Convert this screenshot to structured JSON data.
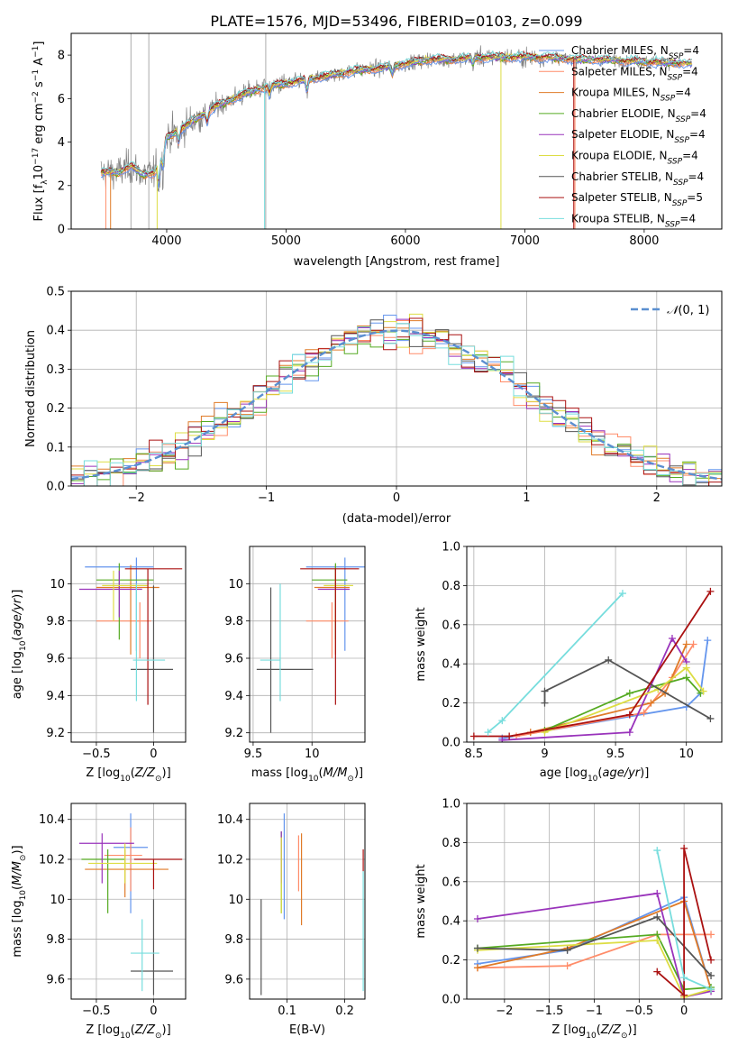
{
  "title": "PLATE=1576, MJD=53496, FIBERID=0103, z=0.099",
  "colors": [
    "#6495ed",
    "#ff8c69",
    "#e07b28",
    "#55aa22",
    "#9933bb",
    "#dddd44",
    "#555555",
    "#aa1111",
    "#77dddd"
  ],
  "models": [
    {
      "name": "Chabrier MILES",
      "nssp": "4"
    },
    {
      "name": "Salpeter MILES",
      "nssp": "4"
    },
    {
      "name": "Kroupa MILES",
      "nssp": "4"
    },
    {
      "name": "Chabrier ELODIE",
      "nssp": "4"
    },
    {
      "name": "Salpeter ELODIE",
      "nssp": "4"
    },
    {
      "name": "Kroupa ELODIE",
      "nssp": "4"
    },
    {
      "name": "Chabrier STELIB",
      "nssp": "4"
    },
    {
      "name": "Salpeter STELIB",
      "nssp": "5"
    },
    {
      "name": "Kroupa STELIB",
      "nssp": "4"
    }
  ],
  "chart_data": [
    {
      "id": "spectrum",
      "type": "line",
      "xlabel": "wavelength [Angstrom, rest frame]",
      "ylabel": "Flux [f",
      "xlim": [
        3200,
        8650
      ],
      "ylim": [
        0,
        9
      ],
      "xticks": [
        4000,
        5000,
        6000,
        7000,
        8000
      ],
      "yticks": [
        0,
        2,
        4,
        6,
        8
      ],
      "legend": "upper right",
      "anchors": [
        [
          3450,
          2.6
        ],
        [
          3600,
          2.6
        ],
        [
          3700,
          2.9
        ],
        [
          3800,
          2.5
        ],
        [
          3900,
          2.6
        ],
        [
          4000,
          4.2
        ],
        [
          4200,
          4.9
        ],
        [
          4400,
          5.6
        ],
        [
          4600,
          6.1
        ],
        [
          4800,
          6.5
        ],
        [
          5000,
          6.7
        ],
        [
          5200,
          6.9
        ],
        [
          5400,
          7.1
        ],
        [
          5600,
          7.3
        ],
        [
          5800,
          7.4
        ],
        [
          6000,
          7.6
        ],
        [
          6200,
          7.8
        ],
        [
          6400,
          7.8
        ],
        [
          6600,
          7.9
        ],
        [
          6800,
          7.9
        ],
        [
          7000,
          7.9
        ],
        [
          7200,
          7.9
        ],
        [
          7400,
          7.8
        ],
        [
          7600,
          7.8
        ],
        [
          8000,
          7.7
        ],
        [
          8400,
          7.6
        ]
      ]
    },
    {
      "id": "residuals",
      "type": "line",
      "xlabel": "(data-model)/error",
      "ylabel": "Normed distribution",
      "xlim": [
        -2.5,
        2.5
      ],
      "ylim": [
        0,
        0.5
      ],
      "xticks": [
        -2,
        -1,
        0,
        1,
        2
      ],
      "yticks": [
        0.0,
        0.1,
        0.2,
        0.3,
        0.4,
        0.5
      ],
      "legend": "upper right",
      "reference": "N(0,1)",
      "grid": true
    },
    {
      "id": "age-vs-Z",
      "type": "scatter",
      "xlabel": "Z [log",
      "ylabel": "age  [log",
      "xlim": [
        -0.72,
        0.28
      ],
      "ylim": [
        9.15,
        10.2
      ],
      "xticks": [
        -0.5,
        0.0
      ],
      "yticks": [
        9.2,
        9.4,
        9.6,
        9.8,
        10.0
      ],
      "points": [
        {
          "model": 0,
          "x": -0.15,
          "y": 10.09,
          "xerr": [
            0.45,
            0.15
          ],
          "yerr": [
            0.45,
            0.05
          ]
        },
        {
          "model": 1,
          "x": -0.12,
          "y": 9.8,
          "xerr": [
            0.38,
            0.1
          ],
          "yerr": [
            0.2,
            0.1
          ]
        },
        {
          "model": 2,
          "x": -0.2,
          "y": 9.98,
          "xerr": [
            0.3,
            0.25
          ],
          "yerr": [
            0.36,
            0.12
          ]
        },
        {
          "model": 3,
          "x": -0.3,
          "y": 10.02,
          "xerr": [
            0.2,
            0.3
          ],
          "yerr": [
            0.32,
            0.09
          ]
        },
        {
          "model": 4,
          "x": -0.3,
          "y": 9.97,
          "xerr": [
            0.35,
            0.2
          ],
          "yerr": [
            0.15,
            0.1
          ]
        },
        {
          "model": 5,
          "x": -0.35,
          "y": 9.99,
          "xerr": [
            0.1,
            0.3
          ],
          "yerr": [
            0.19,
            0.08
          ]
        },
        {
          "model": 6,
          "x": 0.0,
          "y": 9.54,
          "xerr": [
            0.2,
            0.17
          ],
          "yerr": [
            0.34,
            0.45
          ]
        },
        {
          "model": 7,
          "x": -0.05,
          "y": 10.08,
          "xerr": [
            0.2,
            0.3
          ],
          "yerr": [
            0.73,
            0.0
          ]
        },
        {
          "model": 8,
          "x": -0.15,
          "y": 9.59,
          "xerr": [
            0.03,
            0.25
          ],
          "yerr": [
            0.22,
            0.41
          ]
        }
      ]
    },
    {
      "id": "age-vs-mass",
      "type": "scatter",
      "xlabel": "mass [log",
      "ylabel": "",
      "xlim": [
        9.47,
        10.45
      ],
      "ylim": [
        9.15,
        10.2
      ],
      "xticks": [
        9.5,
        10.0
      ],
      "yticks": [
        9.2,
        9.4,
        9.6,
        9.8,
        10.0
      ],
      "points": [
        {
          "model": 0,
          "x": 10.28,
          "y": 10.09,
          "xerr": [
            0.33,
            0.23
          ],
          "yerr": [
            0.45,
            0.05
          ]
        },
        {
          "model": 1,
          "x": 10.17,
          "y": 9.8,
          "xerr": [
            0.22,
            0.14
          ],
          "yerr": [
            0.2,
            0.1
          ]
        },
        {
          "model": 2,
          "x": 10.2,
          "y": 9.98,
          "xerr": [
            0.18,
            0.12
          ],
          "yerr": [
            0.36,
            0.12
          ]
        },
        {
          "model": 3,
          "x": 10.2,
          "y": 10.02,
          "xerr": [
            0.2,
            0.1
          ],
          "yerr": [
            0.32,
            0.09
          ]
        },
        {
          "model": 4,
          "x": 10.2,
          "y": 9.97,
          "xerr": [
            0.15,
            0.12
          ],
          "yerr": [
            0.15,
            0.1
          ]
        },
        {
          "model": 5,
          "x": 10.2,
          "y": 9.99,
          "xerr": [
            0.1,
            0.15
          ],
          "yerr": [
            0.19,
            0.08
          ]
        },
        {
          "model": 6,
          "x": 9.65,
          "y": 9.54,
          "xerr": [
            0.12,
            0.36
          ],
          "yerr": [
            0.34,
            0.44
          ]
        },
        {
          "model": 7,
          "x": 10.2,
          "y": 10.08,
          "xerr": [
            0.3,
            0.2
          ],
          "yerr": [
            0.73,
            0.0
          ]
        },
        {
          "model": 8,
          "x": 9.73,
          "y": 9.59,
          "xerr": [
            0.17,
            0.0
          ],
          "yerr": [
            0.22,
            0.41
          ]
        }
      ]
    },
    {
      "id": "weight-vs-age",
      "type": "line",
      "xlabel": "age  [log",
      "ylabel": "mass weight",
      "xlim": [
        8.45,
        10.25
      ],
      "ylim": [
        0,
        1.0
      ],
      "xticks": [
        8.5,
        9.0,
        9.5,
        10.0
      ],
      "yticks": [
        0.0,
        0.2,
        0.4,
        0.6,
        0.8,
        1.0
      ],
      "grid": true,
      "series": [
        {
          "model": 0,
          "points": [
            [
              8.7,
              0.02
            ],
            [
              10.0,
              0.18
            ],
            [
              10.1,
              0.25
            ],
            [
              10.15,
              0.52
            ]
          ]
        },
        {
          "model": 1,
          "points": [
            [
              8.8,
              0.03
            ],
            [
              9.7,
              0.15
            ],
            [
              9.9,
              0.33
            ],
            [
              10.05,
              0.5
            ]
          ]
        },
        {
          "model": 2,
          "points": [
            [
              8.9,
              0.05
            ],
            [
              9.75,
              0.2
            ],
            [
              9.85,
              0.25
            ],
            [
              10.0,
              0.5
            ]
          ]
        },
        {
          "model": 3,
          "points": [
            [
              9.0,
              0.06
            ],
            [
              9.6,
              0.25
            ],
            [
              10.0,
              0.33
            ],
            [
              10.1,
              0.25
            ]
          ]
        },
        {
          "model": 4,
          "points": [
            [
              8.7,
              0.01
            ],
            [
              9.6,
              0.05
            ],
            [
              9.9,
              0.53
            ],
            [
              10.0,
              0.41
            ]
          ]
        },
        {
          "model": 5,
          "points": [
            [
              9.0,
              0.05
            ],
            [
              9.8,
              0.27
            ],
            [
              10.0,
              0.38
            ],
            [
              10.12,
              0.26
            ]
          ]
        },
        {
          "model": 6,
          "points": [
            [
              9.0,
              0.2
            ],
            [
              9.0,
              0.26
            ],
            [
              9.45,
              0.42
            ],
            [
              10.17,
              0.12
            ]
          ]
        },
        {
          "model": 7,
          "points": [
            [
              8.5,
              0.03
            ],
            [
              8.75,
              0.03
            ],
            [
              9.6,
              0.14
            ],
            [
              10.17,
              0.77
            ]
          ]
        },
        {
          "model": 8,
          "points": [
            [
              8.6,
              0.05
            ],
            [
              8.7,
              0.11
            ],
            [
              9.55,
              0.76
            ]
          ]
        }
      ]
    },
    {
      "id": "mass-vs-Z",
      "type": "scatter",
      "xlabel": "Z [log",
      "ylabel": "mass [log",
      "xlim": [
        -0.72,
        0.28
      ],
      "ylim": [
        9.5,
        10.48
      ],
      "xticks": [
        -0.5,
        0.0
      ],
      "yticks": [
        9.6,
        9.8,
        10.0,
        10.2,
        10.4
      ],
      "points": [
        {
          "model": 0,
          "x": -0.2,
          "y": 10.26,
          "xerr": [
            0.15,
            0.15
          ],
          "yerr": [
            0.33,
            0.17
          ]
        },
        {
          "model": 1,
          "x": -0.2,
          "y": 10.22,
          "xerr": [
            0.23,
            0.1
          ],
          "yerr": [
            0.18,
            0.14
          ]
        },
        {
          "model": 2,
          "x": -0.25,
          "y": 10.15,
          "xerr": [
            0.35,
            0.38
          ],
          "yerr": [
            0.14,
            0.1
          ]
        },
        {
          "model": 3,
          "x": -0.4,
          "y": 10.2,
          "xerr": [
            0.23,
            0.15
          ],
          "yerr": [
            0.27,
            0.05
          ]
        },
        {
          "model": 4,
          "x": -0.45,
          "y": 10.28,
          "xerr": [
            0.2,
            0.28
          ],
          "yerr": [
            0.2,
            0.05
          ]
        },
        {
          "model": 5,
          "x": -0.25,
          "y": 10.18,
          "xerr": [
            0.32,
            0.28
          ],
          "yerr": [
            0.1,
            0.1
          ]
        },
        {
          "model": 6,
          "x": 0.0,
          "y": 9.64,
          "xerr": [
            0.2,
            0.17
          ],
          "yerr": [
            0.12,
            0.36
          ]
        },
        {
          "model": 7,
          "x": 0.0,
          "y": 10.2,
          "xerr": [
            0.17,
            0.25
          ],
          "yerr": [
            0.15,
            0.0
          ]
        },
        {
          "model": 8,
          "x": -0.1,
          "y": 9.73,
          "xerr": [
            0.1,
            0.15
          ],
          "yerr": [
            0.19,
            0.17
          ]
        }
      ]
    },
    {
      "id": "mass-vs-ebv",
      "type": "scatter",
      "xlabel": "E(B-V)",
      "ylabel": "",
      "xlim": [
        0.035,
        0.235
      ],
      "ylim": [
        9.5,
        10.48
      ],
      "xticks": [
        0.1,
        0.2
      ],
      "yticks": [
        9.6,
        9.8,
        10.0,
        10.2,
        10.4
      ],
      "points": [
        {
          "model": 0,
          "x": 0.095,
          "y": 10.26,
          "yerr": [
            0.36,
            0.17
          ]
        },
        {
          "model": 1,
          "x": 0.12,
          "y": 10.22,
          "yerr": [
            0.18,
            0.1
          ]
        },
        {
          "model": 2,
          "x": 0.125,
          "y": 10.15,
          "yerr": [
            0.28,
            0.18
          ]
        },
        {
          "model": 3,
          "x": 0.09,
          "y": 10.2,
          "yerr": [
            0.27,
            0.14
          ]
        },
        {
          "model": 4,
          "x": 0.09,
          "y": 10.28,
          "yerr": [
            0.2,
            0.06
          ]
        },
        {
          "model": 5,
          "x": 0.09,
          "y": 10.18,
          "yerr": [
            0.25,
            0.13
          ]
        },
        {
          "model": 6,
          "x": 0.055,
          "y": 9.64,
          "yerr": [
            0.12,
            0.36
          ]
        },
        {
          "model": 7,
          "x": 0.232,
          "y": 10.2,
          "yerr": [
            0.06,
            0.05
          ]
        },
        {
          "model": 8,
          "x": 0.232,
          "y": 9.73,
          "yerr": [
            0.19,
            0.41
          ]
        }
      ]
    },
    {
      "id": "weight-vs-Z",
      "type": "line",
      "xlabel": "Z [log",
      "ylabel": "mass weight",
      "xlim": [
        -2.42,
        0.42
      ],
      "ylim": [
        0,
        1.0
      ],
      "xticks": [
        -2.0,
        -1.5,
        -1.0,
        -0.5,
        0.0
      ],
      "yticks": [
        0.0,
        0.2,
        0.4,
        0.6,
        0.8,
        1.0
      ],
      "grid": true,
      "series": [
        {
          "model": 0,
          "points": [
            [
              -2.3,
              0.18
            ],
            [
              -1.3,
              0.25
            ],
            [
              0.0,
              0.52
            ],
            [
              0.3,
              0.05
            ]
          ]
        },
        {
          "model": 1,
          "points": [
            [
              -2.3,
              0.16
            ],
            [
              -1.3,
              0.17
            ],
            [
              -0.3,
              0.33
            ],
            [
              0.3,
              0.33
            ]
          ]
        },
        {
          "model": 2,
          "points": [
            [
              -2.3,
              0.16
            ],
            [
              -1.3,
              0.26
            ],
            [
              0.0,
              0.5
            ],
            [
              0.3,
              0.05
            ]
          ]
        },
        {
          "model": 3,
          "points": [
            [
              -2.3,
              0.26
            ],
            [
              -0.3,
              0.33
            ],
            [
              0.0,
              0.05
            ],
            [
              0.3,
              0.06
            ]
          ]
        },
        {
          "model": 4,
          "points": [
            [
              -2.3,
              0.41
            ],
            [
              -0.3,
              0.54
            ],
            [
              0.0,
              0.01
            ],
            [
              0.3,
              0.04
            ]
          ]
        },
        {
          "model": 5,
          "points": [
            [
              -2.3,
              0.25
            ],
            [
              -0.3,
              0.3
            ],
            [
              0.0,
              0.01
            ],
            [
              0.3,
              0.05
            ]
          ]
        },
        {
          "model": 6,
          "points": [
            [
              -2.3,
              0.26
            ],
            [
              -1.3,
              0.25
            ],
            [
              -0.3,
              0.42
            ],
            [
              0.3,
              0.12
            ]
          ]
        },
        {
          "model": 7,
          "points": [
            [
              -0.3,
              0.14
            ],
            [
              0.0,
              0.02
            ],
            [
              0.0,
              0.77
            ],
            [
              0.3,
              0.2
            ]
          ]
        },
        {
          "model": 8,
          "points": [
            [
              -0.3,
              0.76
            ],
            [
              0.0,
              0.11
            ],
            [
              0.3,
              0.05
            ]
          ]
        }
      ]
    }
  ]
}
